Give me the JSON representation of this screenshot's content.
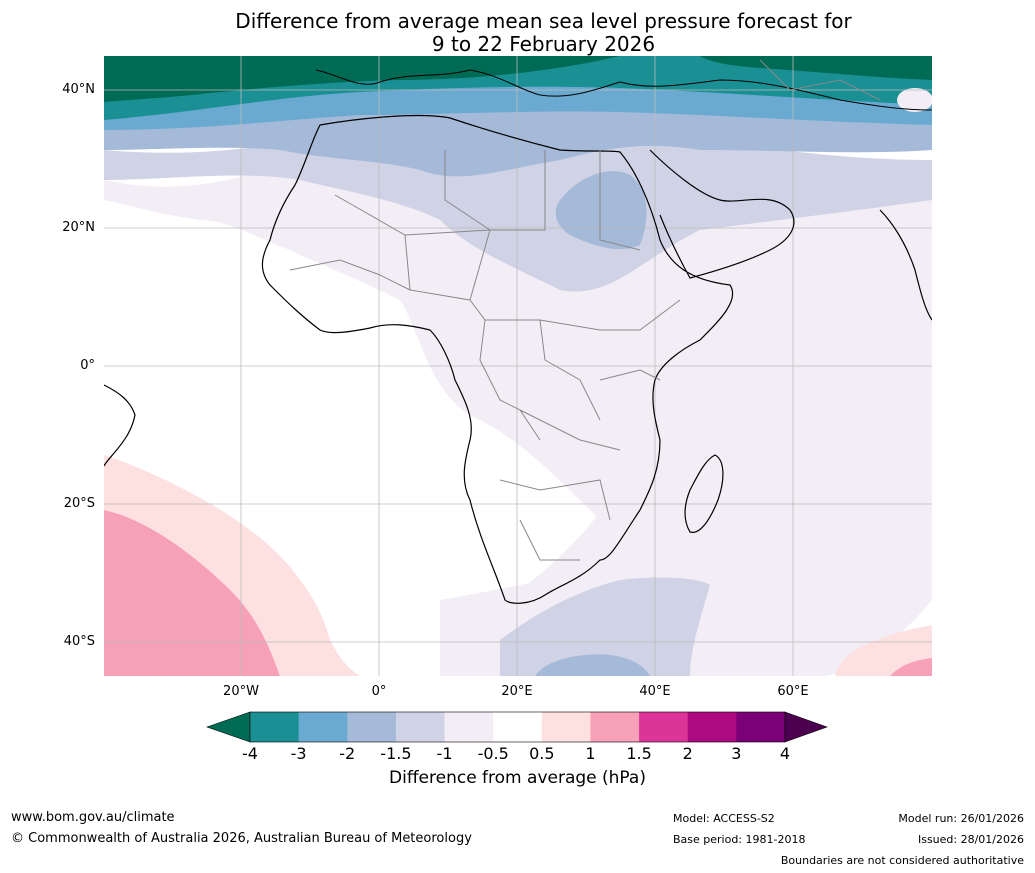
{
  "title": {
    "line1": "Difference from average mean sea level pressure forecast for",
    "line2": "9 to 22 February 2026"
  },
  "axes": {
    "y_labels": [
      "40°N",
      "20°N",
      "0°",
      "20°S",
      "40°S"
    ],
    "x_labels": [
      "20°W",
      "0°",
      "20°E",
      "40°E",
      "60°E"
    ]
  },
  "colorbar": {
    "ticks": [
      "-4",
      "-3",
      "-2",
      "-1.5",
      "-1",
      "-0.5",
      "0.5",
      "1",
      "1.5",
      "2",
      "3",
      "4"
    ],
    "colors": [
      "#006b54",
      "#1a8f94",
      "#6aaad1",
      "#a5b9d8",
      "#d0d3e6",
      "#f3eef6",
      "#ffffff",
      "#fde0e0",
      "#f7a1b9",
      "#dc3597",
      "#ad0a7f",
      "#7a0177",
      "#4b0050"
    ],
    "label": "Difference from average (hPa)"
  },
  "footer": {
    "url": "www.bom.gov.au/climate",
    "copyright": "© Commonwealth of Australia 2026, Australian Bureau of Meteorology",
    "model": "Model: ACCESS-S2",
    "base_period": "Base period: 1981-2018",
    "model_run": "Model run: 26/01/2026",
    "issued": "Issued: 28/01/2026",
    "disclaimer": "Boundaries are not considered authoritative"
  }
}
